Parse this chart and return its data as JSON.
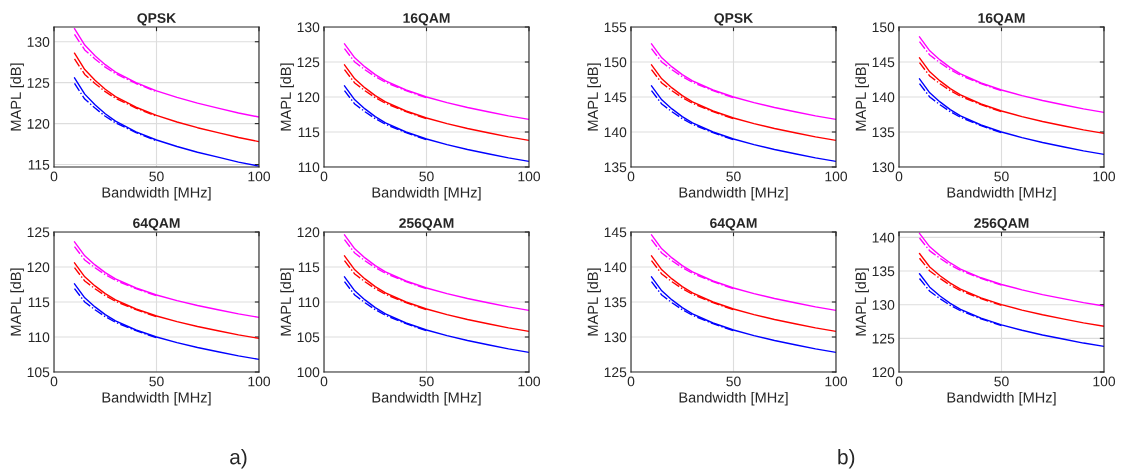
{
  "chart_data": [
    {
      "type": "line",
      "title": "QPSK",
      "xlabel": "Bandwidth [MHz]",
      "ylabel": "MAPL [dB]",
      "x": [
        10,
        15,
        20,
        25,
        30,
        40,
        50,
        60,
        70,
        80,
        90,
        100
      ],
      "xlim": [
        0,
        100
      ],
      "xticks": [
        0,
        50,
        100
      ],
      "ylim": [
        114.7,
        131.8
      ],
      "yticks": [
        115,
        120,
        125,
        130
      ],
      "grid": true,
      "series": [
        {
          "color": "#0000ff",
          "line_style": "solid",
          "values": [
            125.6,
            123.6,
            122.3,
            121.2,
            120.3,
            119.0,
            118.0,
            117.2,
            116.5,
            115.9,
            115.3,
            114.8
          ]
        },
        {
          "color": "#0000ff",
          "line_style": "dashed",
          "x": [
            10,
            15,
            20,
            25,
            30,
            40,
            50
          ],
          "values": [
            124.9,
            123.0,
            121.9,
            120.9,
            120.1,
            118.9,
            117.9
          ]
        },
        {
          "color": "#ff0000",
          "line_style": "solid",
          "values": [
            128.6,
            126.6,
            125.3,
            124.2,
            123.3,
            122.0,
            121.0,
            120.2,
            119.5,
            118.9,
            118.3,
            117.8
          ]
        },
        {
          "color": "#ff0000",
          "line_style": "dashed",
          "x": [
            10,
            15,
            20,
            25,
            30,
            40,
            50
          ],
          "values": [
            127.9,
            126.0,
            124.9,
            123.9,
            123.1,
            121.9,
            120.9
          ]
        },
        {
          "color": "#ff00ff",
          "line_style": "solid",
          "values": [
            131.6,
            129.6,
            128.3,
            127.2,
            126.3,
            125.0,
            124.0,
            123.2,
            122.5,
            121.9,
            121.3,
            120.8
          ]
        },
        {
          "color": "#ff00ff",
          "line_style": "dashed",
          "x": [
            10,
            15,
            20,
            25,
            30,
            40,
            50
          ],
          "values": [
            130.9,
            129.0,
            127.9,
            126.9,
            126.1,
            124.9,
            123.9
          ]
        }
      ]
    },
    {
      "type": "line",
      "title": "16QAM",
      "xlabel": "Bandwidth [MHz]",
      "ylabel": "MAPL [dB]",
      "x": [
        10,
        15,
        20,
        25,
        30,
        40,
        50,
        60,
        70,
        80,
        90,
        100
      ],
      "xlim": [
        0,
        100
      ],
      "xticks": [
        0,
        50,
        100
      ],
      "ylim": [
        110,
        130
      ],
      "yticks": [
        110,
        115,
        120,
        125,
        130
      ],
      "grid": true,
      "series": [
        {
          "color": "#0000ff",
          "line_style": "solid",
          "values": [
            121.6,
            119.6,
            118.3,
            117.2,
            116.3,
            115.0,
            114.0,
            113.2,
            112.5,
            111.9,
            111.3,
            110.8
          ]
        },
        {
          "color": "#0000ff",
          "line_style": "dashed",
          "x": [
            10,
            15,
            20,
            25,
            30,
            40,
            50
          ],
          "values": [
            120.9,
            119.0,
            117.9,
            116.9,
            116.1,
            114.9,
            113.9
          ]
        },
        {
          "color": "#ff0000",
          "line_style": "solid",
          "values": [
            124.6,
            122.6,
            121.3,
            120.2,
            119.3,
            118.0,
            117.0,
            116.2,
            115.5,
            114.9,
            114.3,
            113.8
          ]
        },
        {
          "color": "#ff0000",
          "line_style": "dashed",
          "x": [
            10,
            15,
            20,
            25,
            30,
            40,
            50
          ],
          "values": [
            123.9,
            122.0,
            120.9,
            119.9,
            119.1,
            117.9,
            116.9
          ]
        },
        {
          "color": "#ff00ff",
          "line_style": "solid",
          "values": [
            127.6,
            125.6,
            124.3,
            123.2,
            122.3,
            121.0,
            120.0,
            119.2,
            118.5,
            117.9,
            117.3,
            116.8
          ]
        },
        {
          "color": "#ff00ff",
          "line_style": "dashed",
          "x": [
            10,
            15,
            20,
            25,
            30,
            40,
            50
          ],
          "values": [
            126.9,
            125.0,
            123.9,
            122.9,
            122.1,
            120.9,
            119.9
          ]
        }
      ]
    },
    {
      "type": "line",
      "title": "64QAM",
      "xlabel": "Bandwidth [MHz]",
      "ylabel": "MAPL [dB]",
      "annotations": [
        "a)"
      ],
      "x": [
        10,
        15,
        20,
        25,
        30,
        40,
        50,
        60,
        70,
        80,
        90,
        100
      ],
      "xlim": [
        0,
        100
      ],
      "xticks": [
        0,
        50,
        100
      ],
      "ylim": [
        105,
        125
      ],
      "yticks": [
        105,
        110,
        115,
        120,
        125
      ],
      "grid": true,
      "series": [
        {
          "color": "#0000ff",
          "line_style": "solid",
          "values": [
            117.6,
            115.6,
            114.3,
            113.2,
            112.3,
            111.0,
            110.0,
            109.2,
            108.5,
            107.9,
            107.3,
            106.8
          ]
        },
        {
          "color": "#0000ff",
          "line_style": "dashed",
          "x": [
            10,
            15,
            20,
            25,
            30,
            40,
            50
          ],
          "values": [
            116.9,
            115.0,
            113.9,
            112.9,
            112.1,
            110.9,
            109.9
          ]
        },
        {
          "color": "#ff0000",
          "line_style": "solid",
          "values": [
            120.6,
            118.6,
            117.3,
            116.2,
            115.3,
            114.0,
            113.0,
            112.2,
            111.5,
            110.9,
            110.3,
            109.8
          ]
        },
        {
          "color": "#ff0000",
          "line_style": "dashed",
          "x": [
            10,
            15,
            20,
            25,
            30,
            40,
            50
          ],
          "values": [
            119.9,
            118.0,
            116.9,
            115.9,
            115.1,
            113.9,
            112.9
          ]
        },
        {
          "color": "#ff00ff",
          "line_style": "solid",
          "values": [
            123.6,
            121.6,
            120.3,
            119.2,
            118.3,
            117.0,
            116.0,
            115.2,
            114.5,
            113.9,
            113.3,
            112.8
          ]
        },
        {
          "color": "#ff00ff",
          "line_style": "dashed",
          "x": [
            10,
            15,
            20,
            25,
            30,
            40,
            50
          ],
          "values": [
            122.9,
            121.0,
            119.9,
            118.9,
            118.1,
            116.9,
            115.9
          ]
        }
      ]
    },
    {
      "type": "line",
      "title": "256QAM",
      "xlabel": "Bandwidth [MHz]",
      "ylabel": "MAPL [dB]",
      "x": [
        10,
        15,
        20,
        25,
        30,
        40,
        50,
        60,
        70,
        80,
        90,
        100
      ],
      "xlim": [
        0,
        100
      ],
      "xticks": [
        0,
        50,
        100
      ],
      "ylim": [
        100,
        120
      ],
      "yticks": [
        100,
        105,
        110,
        115,
        120
      ],
      "grid": true,
      "series": [
        {
          "color": "#0000ff",
          "line_style": "solid",
          "values": [
            113.6,
            111.6,
            110.3,
            109.2,
            108.3,
            107.0,
            106.0,
            105.2,
            104.5,
            103.9,
            103.3,
            102.8
          ]
        },
        {
          "color": "#0000ff",
          "line_style": "dashed",
          "x": [
            10,
            15,
            20,
            25,
            30,
            40,
            50
          ],
          "values": [
            112.9,
            111.0,
            109.9,
            108.9,
            108.1,
            106.9,
            105.9
          ]
        },
        {
          "color": "#ff0000",
          "line_style": "solid",
          "values": [
            116.6,
            114.6,
            113.3,
            112.2,
            111.3,
            110.0,
            109.0,
            108.2,
            107.5,
            106.9,
            106.3,
            105.8
          ]
        },
        {
          "color": "#ff0000",
          "line_style": "dashed",
          "x": [
            10,
            15,
            20,
            25,
            30,
            40,
            50
          ],
          "values": [
            115.9,
            114.0,
            112.9,
            111.9,
            111.1,
            109.9,
            108.9
          ]
        },
        {
          "color": "#ff00ff",
          "line_style": "solid",
          "values": [
            119.6,
            117.6,
            116.3,
            115.2,
            114.3,
            113.0,
            112.0,
            111.2,
            110.5,
            109.9,
            109.3,
            108.8
          ]
        },
        {
          "color": "#ff00ff",
          "line_style": "dashed",
          "x": [
            10,
            15,
            20,
            25,
            30,
            40,
            50
          ],
          "values": [
            118.9,
            117.0,
            115.9,
            114.9,
            114.1,
            112.9,
            111.9
          ]
        }
      ]
    },
    {
      "type": "line",
      "title": "QPSK",
      "xlabel": "Bandwidth [MHz]",
      "ylabel": "MAPL [dB]",
      "x": [
        10,
        15,
        20,
        25,
        30,
        40,
        50,
        60,
        70,
        80,
        90,
        100
      ],
      "xlim": [
        0,
        100
      ],
      "xticks": [
        0,
        50,
        100
      ],
      "ylim": [
        135,
        155
      ],
      "yticks": [
        135,
        140,
        145,
        150,
        155
      ],
      "grid": true,
      "series": [
        {
          "color": "#0000ff",
          "line_style": "solid",
          "values": [
            146.6,
            144.6,
            143.3,
            142.2,
            141.3,
            140.0,
            139.0,
            138.2,
            137.5,
            136.9,
            136.3,
            135.8
          ]
        },
        {
          "color": "#0000ff",
          "line_style": "dashed",
          "x": [
            10,
            15,
            20,
            25,
            30,
            40,
            50
          ],
          "values": [
            145.9,
            144.0,
            142.9,
            141.9,
            141.1,
            139.9,
            138.9
          ]
        },
        {
          "color": "#ff0000",
          "line_style": "solid",
          "values": [
            149.6,
            147.6,
            146.3,
            145.2,
            144.3,
            143.0,
            142.0,
            141.2,
            140.5,
            139.9,
            139.3,
            138.8
          ]
        },
        {
          "color": "#ff0000",
          "line_style": "dashed",
          "x": [
            10,
            15,
            20,
            25,
            30,
            40,
            50
          ],
          "values": [
            148.9,
            147.0,
            145.9,
            144.9,
            144.1,
            142.9,
            141.9
          ]
        },
        {
          "color": "#ff00ff",
          "line_style": "solid",
          "values": [
            152.6,
            150.6,
            149.3,
            148.2,
            147.3,
            146.0,
            145.0,
            144.2,
            143.5,
            142.9,
            142.3,
            141.8
          ]
        },
        {
          "color": "#ff00ff",
          "line_style": "dashed",
          "x": [
            10,
            15,
            20,
            25,
            30,
            40,
            50
          ],
          "values": [
            151.9,
            150.0,
            148.9,
            147.9,
            147.1,
            145.9,
            144.9
          ]
        }
      ]
    },
    {
      "type": "line",
      "title": "16QAM",
      "xlabel": "Bandwidth [MHz]",
      "ylabel": "MAPL [dB]",
      "x": [
        10,
        15,
        20,
        25,
        30,
        40,
        50,
        60,
        70,
        80,
        90,
        100
      ],
      "xlim": [
        0,
        100
      ],
      "xticks": [
        0,
        50,
        100
      ],
      "ylim": [
        130,
        150
      ],
      "yticks": [
        130,
        135,
        140,
        145,
        150
      ],
      "grid": true,
      "series": [
        {
          "color": "#0000ff",
          "line_style": "solid",
          "values": [
            142.6,
            140.6,
            139.3,
            138.2,
            137.3,
            136.0,
            135.0,
            134.2,
            133.5,
            132.9,
            132.3,
            131.8
          ]
        },
        {
          "color": "#0000ff",
          "line_style": "dashed",
          "x": [
            10,
            15,
            20,
            25,
            30,
            40,
            50
          ],
          "values": [
            141.9,
            140.0,
            138.9,
            137.9,
            137.1,
            135.9,
            134.9
          ]
        },
        {
          "color": "#ff0000",
          "line_style": "solid",
          "values": [
            145.6,
            143.6,
            142.3,
            141.2,
            140.3,
            139.0,
            138.0,
            137.2,
            136.5,
            135.9,
            135.3,
            134.8
          ]
        },
        {
          "color": "#ff0000",
          "line_style": "dashed",
          "x": [
            10,
            15,
            20,
            25,
            30,
            40,
            50
          ],
          "values": [
            144.9,
            143.0,
            141.9,
            140.9,
            140.1,
            138.9,
            137.9
          ]
        },
        {
          "color": "#ff00ff",
          "line_style": "solid",
          "values": [
            148.6,
            146.6,
            145.3,
            144.2,
            143.3,
            142.0,
            141.0,
            140.2,
            139.5,
            138.9,
            138.3,
            137.8
          ]
        },
        {
          "color": "#ff00ff",
          "line_style": "dashed",
          "x": [
            10,
            15,
            20,
            25,
            30,
            40,
            50
          ],
          "values": [
            147.9,
            146.0,
            144.9,
            143.9,
            143.1,
            141.9,
            140.9
          ]
        }
      ]
    },
    {
      "type": "line",
      "title": "64QAM",
      "xlabel": "Bandwidth [MHz]",
      "ylabel": "MAPL [dB]",
      "annotations": [
        "b)"
      ],
      "x": [
        10,
        15,
        20,
        25,
        30,
        40,
        50,
        60,
        70,
        80,
        90,
        100
      ],
      "xlim": [
        0,
        100
      ],
      "xticks": [
        0,
        50,
        100
      ],
      "ylim": [
        125,
        145
      ],
      "yticks": [
        125,
        130,
        135,
        140,
        145
      ],
      "grid": true,
      "series": [
        {
          "color": "#0000ff",
          "line_style": "solid",
          "values": [
            138.6,
            136.6,
            135.3,
            134.2,
            133.3,
            132.0,
            131.0,
            130.2,
            129.5,
            128.9,
            128.3,
            127.8
          ]
        },
        {
          "color": "#0000ff",
          "line_style": "dashed",
          "x": [
            10,
            15,
            20,
            25,
            30,
            40,
            50
          ],
          "values": [
            137.9,
            136.0,
            134.9,
            133.9,
            133.1,
            131.9,
            130.9
          ]
        },
        {
          "color": "#ff0000",
          "line_style": "solid",
          "values": [
            141.6,
            139.6,
            138.3,
            137.2,
            136.3,
            135.0,
            134.0,
            133.2,
            132.5,
            131.9,
            131.3,
            130.8
          ]
        },
        {
          "color": "#ff0000",
          "line_style": "dashed",
          "x": [
            10,
            15,
            20,
            25,
            30,
            40,
            50
          ],
          "values": [
            140.9,
            139.0,
            137.9,
            136.9,
            136.1,
            134.9,
            133.9
          ]
        },
        {
          "color": "#ff00ff",
          "line_style": "solid",
          "values": [
            144.6,
            142.6,
            141.3,
            140.2,
            139.3,
            138.0,
            137.0,
            136.2,
            135.5,
            134.9,
            134.3,
            133.8
          ]
        },
        {
          "color": "#ff00ff",
          "line_style": "dashed",
          "x": [
            10,
            15,
            20,
            25,
            30,
            40,
            50
          ],
          "values": [
            143.9,
            142.0,
            140.9,
            139.9,
            139.1,
            137.9,
            136.9
          ]
        }
      ]
    },
    {
      "type": "line",
      "title": "256QAM",
      "xlabel": "Bandwidth [MHz]",
      "ylabel": "MAPL [dB]",
      "x": [
        10,
        15,
        20,
        25,
        30,
        40,
        50,
        60,
        70,
        80,
        90,
        100
      ],
      "xlim": [
        0,
        100
      ],
      "xticks": [
        0,
        50,
        100
      ],
      "ylim": [
        120,
        140.8
      ],
      "yticks": [
        120,
        125,
        130,
        135,
        140
      ],
      "grid": true,
      "series": [
        {
          "color": "#0000ff",
          "line_style": "solid",
          "values": [
            134.6,
            132.6,
            131.3,
            130.2,
            129.3,
            128.0,
            127.0,
            126.2,
            125.5,
            124.9,
            124.3,
            123.8
          ]
        },
        {
          "color": "#0000ff",
          "line_style": "dashed",
          "x": [
            10,
            15,
            20,
            25,
            30,
            40,
            50
          ],
          "values": [
            133.9,
            132.0,
            130.9,
            129.9,
            129.1,
            127.9,
            126.9
          ]
        },
        {
          "color": "#ff0000",
          "line_style": "solid",
          "values": [
            137.6,
            135.6,
            134.3,
            133.2,
            132.3,
            131.0,
            130.0,
            129.2,
            128.5,
            127.9,
            127.3,
            126.8
          ]
        },
        {
          "color": "#ff0000",
          "line_style": "dashed",
          "x": [
            10,
            15,
            20,
            25,
            30,
            40,
            50
          ],
          "values": [
            136.9,
            135.0,
            133.9,
            132.9,
            132.1,
            130.9,
            129.9
          ]
        },
        {
          "color": "#ff00ff",
          "line_style": "solid",
          "values": [
            140.6,
            138.6,
            137.3,
            136.2,
            135.3,
            134.0,
            133.0,
            132.2,
            131.5,
            130.9,
            130.3,
            129.8
          ]
        },
        {
          "color": "#ff00ff",
          "line_style": "dashed",
          "x": [
            10,
            15,
            20,
            25,
            30,
            40,
            50
          ],
          "values": [
            139.9,
            138.0,
            136.9,
            135.9,
            135.1,
            133.9,
            132.9
          ]
        }
      ]
    }
  ]
}
